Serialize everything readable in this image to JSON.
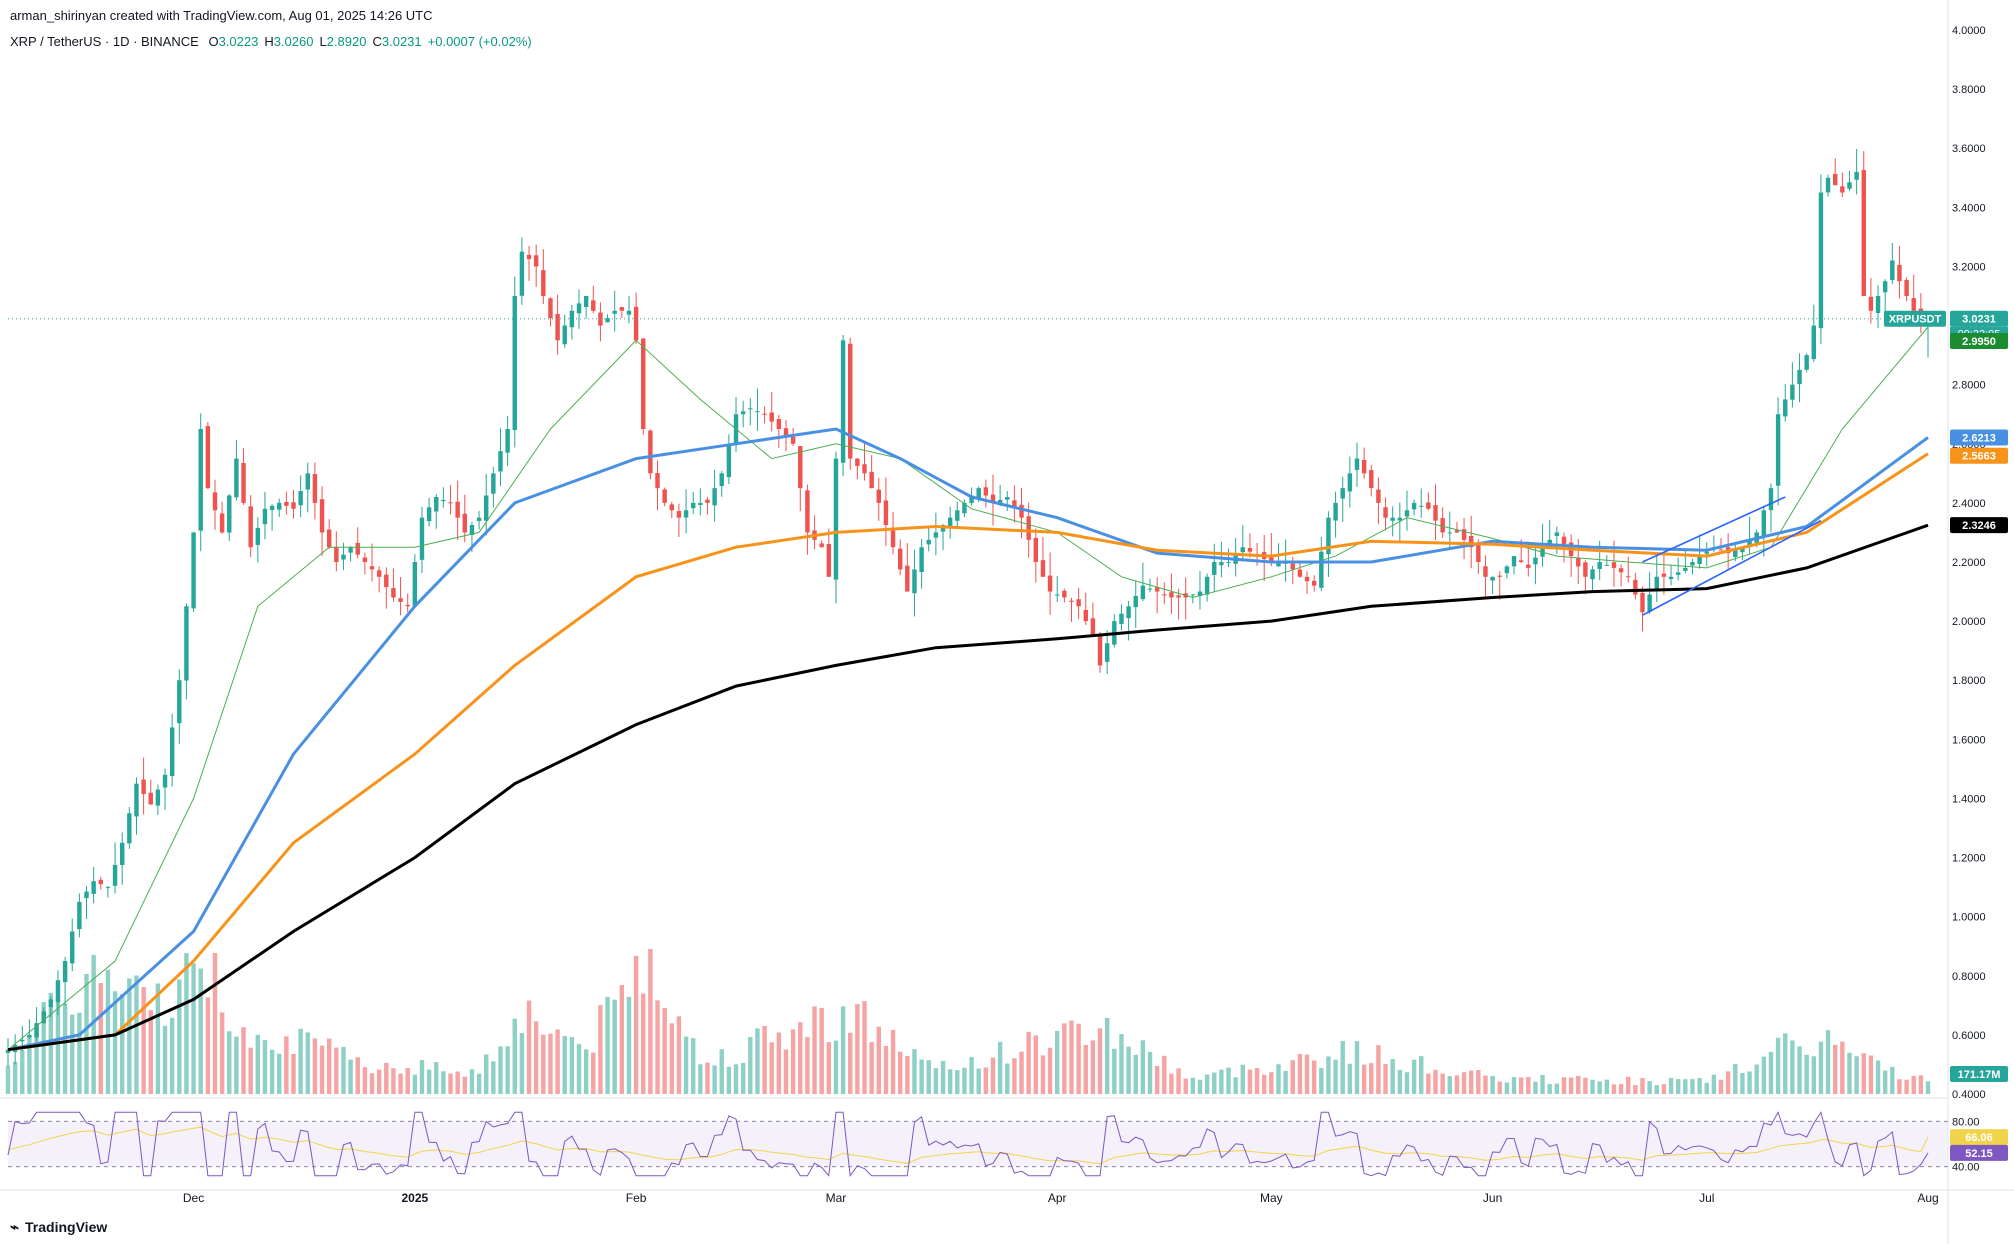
{
  "header": {
    "credit": "arman_shirinyan created with TradingView.com, Aug 01, 2025 14:26 UTC",
    "symbol_line": "XRP / TetherUS · 1D · BINANCE",
    "ohlc": [
      {
        "k": "O",
        "v": "3.0223"
      },
      {
        "k": "H",
        "v": "3.0260"
      },
      {
        "k": "L",
        "v": "2.8920"
      },
      {
        "k": "C",
        "v": "3.0231"
      },
      {
        "k": "",
        "v": "+0.0007 (+0.02%)"
      }
    ]
  },
  "footer": {
    "brand": "TradingView",
    "logo_icon": "tradingview-logo-icon"
  },
  "colors": {
    "up": "#26a69a",
    "down": "#ef5350",
    "vol_up": "#8fd0c6",
    "vol_down": "#f5a3a3",
    "ma20": "#4caf50",
    "ma50": "#4a90e2",
    "ma100": "#f7931a",
    "ma200": "#000000",
    "rsi": "#7e57c2",
    "rsi_ma": "#f2d44c",
    "trend": "#2962ff"
  },
  "chart_data": {
    "type": "candlestick",
    "symbol": "XRPUSDT",
    "price_axis": [
      "4.0000",
      "3.8000",
      "3.6000",
      "3.4000",
      "3.2000",
      "3.0000",
      "2.8000",
      "2.6000",
      "2.4000",
      "2.2000",
      "2.0000",
      "1.8000",
      "1.6000",
      "1.4000",
      "1.2000",
      "1.0000",
      "0.8000",
      "0.6000",
      "0.4000"
    ],
    "ylim": [
      0.4,
      4.0
    ],
    "time_axis": [
      {
        "label": "Dec",
        "date": "2024-12-01"
      },
      {
        "label": "2025",
        "date": "2025-01-01"
      },
      {
        "label": "Feb",
        "date": "2025-02-01"
      },
      {
        "label": "Mar",
        "date": "2025-03-01"
      },
      {
        "label": "Apr",
        "date": "2025-04-01"
      },
      {
        "label": "May",
        "date": "2025-05-01"
      },
      {
        "label": "Jun",
        "date": "2025-06-01"
      },
      {
        "label": "Jul",
        "date": "2025-07-01"
      },
      {
        "label": "Aug",
        "date": "2025-08-01"
      }
    ],
    "x_range": [
      "2024-11-05",
      "2025-08-01"
    ],
    "price_path": [
      [
        "2024-11-05",
        0.55
      ],
      [
        "2024-11-08",
        0.6
      ],
      [
        "2024-11-11",
        0.72
      ],
      [
        "2024-11-13",
        0.85
      ],
      [
        "2024-11-15",
        1.05
      ],
      [
        "2024-11-17",
        1.12
      ],
      [
        "2024-11-19",
        1.1
      ],
      [
        "2024-11-21",
        1.25
      ],
      [
        "2024-11-23",
        1.45
      ],
      [
        "2024-11-25",
        1.38
      ],
      [
        "2024-11-27",
        1.48
      ],
      [
        "2024-11-29",
        1.8
      ],
      [
        "2024-12-01",
        2.3
      ],
      [
        "2024-12-02",
        2.65
      ],
      [
        "2024-12-03",
        2.45
      ],
      [
        "2024-12-05",
        2.3
      ],
      [
        "2024-12-07",
        2.55
      ],
      [
        "2024-12-09",
        2.25
      ],
      [
        "2024-12-11",
        2.38
      ],
      [
        "2024-12-13",
        2.4
      ],
      [
        "2024-12-15",
        2.38
      ],
      [
        "2024-12-17",
        2.5
      ],
      [
        "2024-12-19",
        2.3
      ],
      [
        "2024-12-21",
        2.2
      ],
      [
        "2024-12-23",
        2.25
      ],
      [
        "2024-12-25",
        2.2
      ],
      [
        "2024-12-27",
        2.15
      ],
      [
        "2024-12-29",
        2.08
      ],
      [
        "2024-12-31",
        2.05
      ],
      [
        "2025-01-02",
        2.35
      ],
      [
        "2025-01-04",
        2.42
      ],
      [
        "2025-01-06",
        2.4
      ],
      [
        "2025-01-08",
        2.3
      ],
      [
        "2025-01-10",
        2.35
      ],
      [
        "2025-01-12",
        2.5
      ],
      [
        "2025-01-14",
        2.65
      ],
      [
        "2025-01-15",
        3.1
      ],
      [
        "2025-01-16",
        3.25
      ],
      [
        "2025-01-18",
        3.2
      ],
      [
        "2025-01-19",
        3.1
      ],
      [
        "2025-01-21",
        2.95
      ],
      [
        "2025-01-23",
        3.05
      ],
      [
        "2025-01-25",
        3.1
      ],
      [
        "2025-01-27",
        3.0
      ],
      [
        "2025-01-29",
        3.05
      ],
      [
        "2025-01-31",
        3.05
      ],
      [
        "2025-02-01",
        2.95
      ],
      [
        "2025-02-02",
        2.65
      ],
      [
        "2025-02-03",
        2.5
      ],
      [
        "2025-02-05",
        2.4
      ],
      [
        "2025-02-07",
        2.35
      ],
      [
        "2025-02-09",
        2.4
      ],
      [
        "2025-02-11",
        2.4
      ],
      [
        "2025-02-13",
        2.5
      ],
      [
        "2025-02-15",
        2.7
      ],
      [
        "2025-02-17",
        2.72
      ],
      [
        "2025-02-19",
        2.7
      ],
      [
        "2025-02-21",
        2.65
      ],
      [
        "2025-02-23",
        2.6
      ],
      [
        "2025-02-25",
        2.3
      ],
      [
        "2025-02-27",
        2.25
      ],
      [
        "2025-02-28",
        2.15
      ],
      [
        "2025-03-02",
        2.95
      ],
      [
        "2025-03-03",
        2.55
      ],
      [
        "2025-03-05",
        2.5
      ],
      [
        "2025-03-07",
        2.4
      ],
      [
        "2025-03-09",
        2.25
      ],
      [
        "2025-03-11",
        2.1
      ],
      [
        "2025-03-13",
        2.25
      ],
      [
        "2025-03-15",
        2.3
      ],
      [
        "2025-03-17",
        2.35
      ],
      [
        "2025-03-19",
        2.4
      ],
      [
        "2025-03-21",
        2.45
      ],
      [
        "2025-03-23",
        2.4
      ],
      [
        "2025-03-25",
        2.42
      ],
      [
        "2025-03-27",
        2.35
      ],
      [
        "2025-03-29",
        2.2
      ],
      [
        "2025-03-31",
        2.1
      ],
      [
        "2025-04-02",
        2.08
      ],
      [
        "2025-04-04",
        2.05
      ],
      [
        "2025-04-06",
        1.95
      ],
      [
        "2025-04-07",
        1.85
      ],
      [
        "2025-04-09",
        2.0
      ],
      [
        "2025-04-11",
        2.05
      ],
      [
        "2025-04-13",
        2.12
      ],
      [
        "2025-04-15",
        2.1
      ],
      [
        "2025-04-17",
        2.08
      ],
      [
        "2025-04-19",
        2.08
      ],
      [
        "2025-04-21",
        2.1
      ],
      [
        "2025-04-23",
        2.2
      ],
      [
        "2025-04-25",
        2.2
      ],
      [
        "2025-04-27",
        2.25
      ],
      [
        "2025-04-29",
        2.22
      ],
      [
        "2025-05-01",
        2.2
      ],
      [
        "2025-05-03",
        2.2
      ],
      [
        "2025-05-05",
        2.15
      ],
      [
        "2025-05-07",
        2.12
      ],
      [
        "2025-05-09",
        2.35
      ],
      [
        "2025-05-11",
        2.45
      ],
      [
        "2025-05-13",
        2.55
      ],
      [
        "2025-05-15",
        2.45
      ],
      [
        "2025-05-17",
        2.35
      ],
      [
        "2025-05-19",
        2.35
      ],
      [
        "2025-05-21",
        2.4
      ],
      [
        "2025-05-23",
        2.38
      ],
      [
        "2025-05-25",
        2.3
      ],
      [
        "2025-05-27",
        2.3
      ],
      [
        "2025-05-29",
        2.25
      ],
      [
        "2025-05-31",
        2.15
      ],
      [
        "2025-06-02",
        2.15
      ],
      [
        "2025-06-04",
        2.22
      ],
      [
        "2025-06-06",
        2.18
      ],
      [
        "2025-06-08",
        2.25
      ],
      [
        "2025-06-10",
        2.3
      ],
      [
        "2025-06-12",
        2.22
      ],
      [
        "2025-06-14",
        2.15
      ],
      [
        "2025-06-16",
        2.2
      ],
      [
        "2025-06-18",
        2.18
      ],
      [
        "2025-06-20",
        2.15
      ],
      [
        "2025-06-22",
        2.03
      ],
      [
        "2025-06-24",
        2.15
      ],
      [
        "2025-06-26",
        2.15
      ],
      [
        "2025-06-28",
        2.18
      ],
      [
        "2025-06-30",
        2.22
      ],
      [
        "2025-07-02",
        2.25
      ],
      [
        "2025-07-04",
        2.23
      ],
      [
        "2025-07-06",
        2.25
      ],
      [
        "2025-07-08",
        2.3
      ],
      [
        "2025-07-10",
        2.45
      ],
      [
        "2025-07-11",
        2.7
      ],
      [
        "2025-07-13",
        2.8
      ],
      [
        "2025-07-15",
        2.9
      ],
      [
        "2025-07-16",
        3.0
      ],
      [
        "2025-07-17",
        3.45
      ],
      [
        "2025-07-18",
        3.5
      ],
      [
        "2025-07-20",
        3.45
      ],
      [
        "2025-07-22",
        3.52
      ],
      [
        "2025-07-23",
        3.1
      ],
      [
        "2025-07-24",
        3.05
      ],
      [
        "2025-07-26",
        3.15
      ],
      [
        "2025-07-27",
        3.22
      ],
      [
        "2025-07-28",
        3.15
      ],
      [
        "2025-07-29",
        3.1
      ],
      [
        "2025-07-30",
        3.05
      ],
      [
        "2025-07-31",
        3.02
      ],
      [
        "2025-08-01",
        3.0231
      ]
    ],
    "last_candle": {
      "date": "2025-08-01",
      "open": 3.0223,
      "high": 3.026,
      "low": 2.892,
      "close": 3.0231
    },
    "moving_averages": [
      {
        "id": "ma20",
        "points": [
          [
            "2024-11-05",
            0.55
          ],
          [
            "2024-11-20",
            0.85
          ],
          [
            "2024-12-01",
            1.4
          ],
          [
            "2024-12-10",
            2.05
          ],
          [
            "2024-12-20",
            2.25
          ],
          [
            "2025-01-01",
            2.25
          ],
          [
            "2025-01-10",
            2.3
          ],
          [
            "2025-01-20",
            2.65
          ],
          [
            "2025-02-01",
            2.95
          ],
          [
            "2025-02-10",
            2.75
          ],
          [
            "2025-02-20",
            2.55
          ],
          [
            "2025-03-01",
            2.6
          ],
          [
            "2025-03-10",
            2.55
          ],
          [
            "2025-03-20",
            2.38
          ],
          [
            "2025-04-01",
            2.3
          ],
          [
            "2025-04-10",
            2.15
          ],
          [
            "2025-04-20",
            2.08
          ],
          [
            "2025-05-01",
            2.15
          ],
          [
            "2025-05-10",
            2.22
          ],
          [
            "2025-05-20",
            2.35
          ],
          [
            "2025-06-01",
            2.28
          ],
          [
            "2025-06-10",
            2.22
          ],
          [
            "2025-06-20",
            2.2
          ],
          [
            "2025-07-01",
            2.18
          ],
          [
            "2025-07-10",
            2.25
          ],
          [
            "2025-07-20",
            2.65
          ],
          [
            "2025-08-01",
            2.995
          ]
        ]
      },
      {
        "id": "ma50",
        "points": [
          [
            "2024-11-05",
            0.55
          ],
          [
            "2024-11-15",
            0.6
          ],
          [
            "2024-12-01",
            0.95
          ],
          [
            "2024-12-15",
            1.55
          ],
          [
            "2025-01-01",
            2.05
          ],
          [
            "2025-01-15",
            2.4
          ],
          [
            "2025-02-01",
            2.55
          ],
          [
            "2025-02-15",
            2.6
          ],
          [
            "2025-03-01",
            2.65
          ],
          [
            "2025-03-10",
            2.55
          ],
          [
            "2025-03-20",
            2.42
          ],
          [
            "2025-04-01",
            2.35
          ],
          [
            "2025-04-15",
            2.23
          ],
          [
            "2025-05-01",
            2.2
          ],
          [
            "2025-05-15",
            2.2
          ],
          [
            "2025-06-01",
            2.27
          ],
          [
            "2025-06-15",
            2.25
          ],
          [
            "2025-07-01",
            2.24
          ],
          [
            "2025-07-15",
            2.32
          ],
          [
            "2025-08-01",
            2.6213
          ]
        ]
      },
      {
        "id": "ma100",
        "points": [
          [
            "2024-11-05",
            0.55
          ],
          [
            "2024-11-20",
            0.6
          ],
          [
            "2024-12-01",
            0.85
          ],
          [
            "2024-12-15",
            1.25
          ],
          [
            "2025-01-01",
            1.55
          ],
          [
            "2025-01-15",
            1.85
          ],
          [
            "2025-02-01",
            2.15
          ],
          [
            "2025-02-15",
            2.25
          ],
          [
            "2025-03-01",
            2.3
          ],
          [
            "2025-03-15",
            2.32
          ],
          [
            "2025-04-01",
            2.3
          ],
          [
            "2025-04-15",
            2.24
          ],
          [
            "2025-05-01",
            2.22
          ],
          [
            "2025-05-15",
            2.27
          ],
          [
            "2025-06-01",
            2.26
          ],
          [
            "2025-06-15",
            2.24
          ],
          [
            "2025-07-01",
            2.22
          ],
          [
            "2025-07-15",
            2.3
          ],
          [
            "2025-08-01",
            2.5663
          ]
        ]
      },
      {
        "id": "ma200",
        "points": [
          [
            "2024-11-05",
            0.55
          ],
          [
            "2024-11-20",
            0.6
          ],
          [
            "2024-12-01",
            0.72
          ],
          [
            "2024-12-15",
            0.95
          ],
          [
            "2025-01-01",
            1.2
          ],
          [
            "2025-01-15",
            1.45
          ],
          [
            "2025-02-01",
            1.65
          ],
          [
            "2025-02-15",
            1.78
          ],
          [
            "2025-03-01",
            1.85
          ],
          [
            "2025-03-15",
            1.91
          ],
          [
            "2025-04-01",
            1.94
          ],
          [
            "2025-04-15",
            1.97
          ],
          [
            "2025-05-01",
            2.0
          ],
          [
            "2025-05-15",
            2.05
          ],
          [
            "2025-06-01",
            2.08
          ],
          [
            "2025-06-15",
            2.1
          ],
          [
            "2025-07-01",
            2.11
          ],
          [
            "2025-07-15",
            2.18
          ],
          [
            "2025-08-01",
            2.3246
          ]
        ]
      }
    ],
    "trendlines": [
      {
        "from": [
          "2025-06-22",
          2.02
        ],
        "to": [
          "2025-07-17",
          2.34
        ]
      },
      {
        "from": [
          "2025-06-22",
          2.2
        ],
        "to": [
          "2025-07-12",
          2.42
        ]
      }
    ],
    "labels": [
      {
        "text": "XRPUSDT",
        "value": 3.0231,
        "color": "#26a69a"
      },
      {
        "text": "3.0231",
        "value": 3.0231,
        "color": "#26a69a"
      },
      {
        "text": "09:33:05",
        "value": 3.0231,
        "color": "#26a69a"
      },
      {
        "text": "2.9950",
        "value": 2.995,
        "color": "#1b8c2f"
      },
      {
        "text": "2.6213",
        "value": 2.6213,
        "color": "#4a90e2"
      },
      {
        "text": "2.5663",
        "value": 2.5663,
        "color": "#f7931a"
      },
      {
        "text": "2.3246",
        "value": 2.3246,
        "color": "#000000"
      }
    ],
    "volume": {
      "last_label": "171.17M",
      "peaks": [
        [
          "2024-11-05",
          0.25
        ],
        [
          "2024-11-12",
          0.55
        ],
        [
          "2024-11-16",
          0.8
        ],
        [
          "2024-11-24",
          0.6
        ],
        [
          "2024-12-01",
          0.75
        ],
        [
          "2024-12-02",
          1.0
        ],
        [
          "2024-12-06",
          0.5
        ],
        [
          "2024-12-15",
          0.35
        ],
        [
          "2024-12-25",
          0.2
        ],
        [
          "2025-01-10",
          0.15
        ],
        [
          "2025-01-16",
          0.55
        ],
        [
          "2025-01-25",
          0.3
        ],
        [
          "2025-02-03",
          0.95
        ],
        [
          "2025-02-10",
          0.2
        ],
        [
          "2025-03-03",
          0.55
        ],
        [
          "2025-03-15",
          0.15
        ],
        [
          "2025-04-07",
          0.45
        ],
        [
          "2025-04-20",
          0.1
        ],
        [
          "2025-05-12",
          0.28
        ],
        [
          "2025-06-01",
          0.1
        ],
        [
          "2025-07-01",
          0.08
        ],
        [
          "2025-07-12",
          0.3
        ],
        [
          "2025-07-18",
          0.35
        ],
        [
          "2025-07-24",
          0.2
        ],
        [
          "2025-08-01",
          0.08
        ]
      ]
    },
    "rsi": {
      "axis": [
        "80.00",
        "40.00"
      ],
      "levels": [
        80,
        40
      ],
      "labels": [
        {
          "text": "66.06",
          "value": 66.06,
          "color": "#f2d44c"
        },
        {
          "text": "52.15",
          "value": 52.15,
          "color": "#7e57c2"
        }
      ]
    }
  }
}
